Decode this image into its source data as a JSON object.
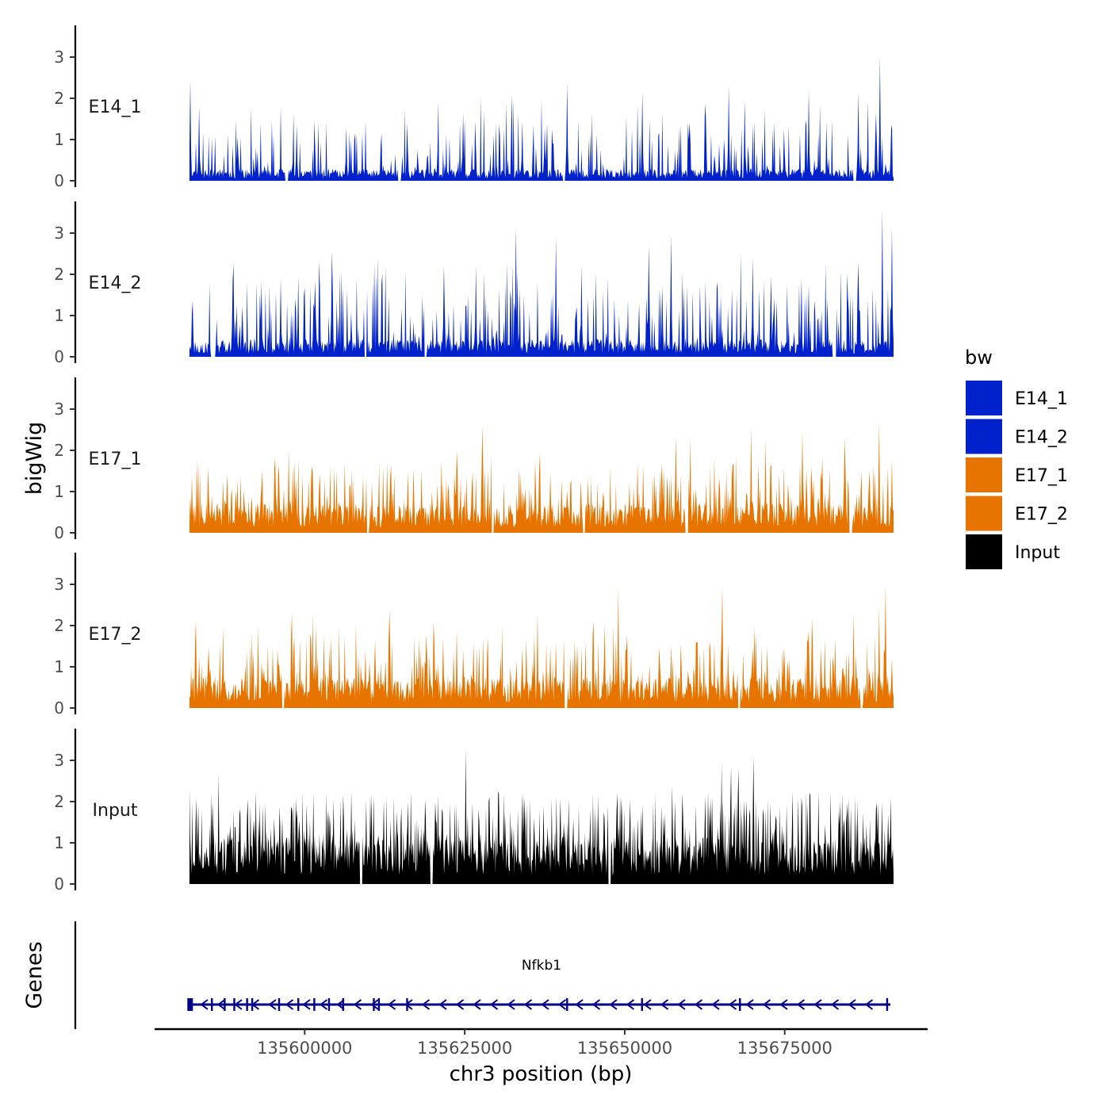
{
  "chart_data": {
    "type": "area",
    "title": "",
    "ylabel": "bigWig",
    "genes_label": "Genes",
    "xlabel": "chr3 position (bp)",
    "x_range": [
      135582000,
      135692000
    ],
    "x_ticks": [
      135600000,
      135625000,
      135650000,
      135675000
    ],
    "x_tick_labels": [
      "135600000",
      "135625000",
      "135650000",
      "135675000"
    ],
    "ylim": [
      0,
      3.8
    ],
    "y_ticks": [
      0,
      1,
      2,
      3
    ],
    "y_tick_labels": [
      "0",
      "1",
      "2",
      "3"
    ],
    "legend": {
      "title": "bw",
      "position": "right",
      "entries": [
        {
          "label": "E14_1",
          "color": "#0022CC"
        },
        {
          "label": "E14_2",
          "color": "#0022CC"
        },
        {
          "label": "E17_1",
          "color": "#E87400"
        },
        {
          "label": "E17_2",
          "color": "#E87400"
        },
        {
          "label": "Input",
          "color": "#000000"
        }
      ]
    },
    "series": [
      {
        "name": "E14_1",
        "color": "#0022CC",
        "bins": 220,
        "base": 0.22,
        "spike_prob": 0.2,
        "max": 3.0,
        "seed": 11,
        "peaks": [
          {
            "x": 135582100,
            "y": 2.45
          },
          {
            "x": 135583500,
            "y": 1.8
          },
          {
            "x": 135592600,
            "y": 0.72
          },
          {
            "x": 135598700,
            "y": 1.35
          },
          {
            "x": 135606500,
            "y": 1.3
          },
          {
            "x": 135616000,
            "y": 1.4
          },
          {
            "x": 135624800,
            "y": 1.65
          },
          {
            "x": 135629500,
            "y": 1.1
          },
          {
            "x": 135634000,
            "y": 1.45
          },
          {
            "x": 135641000,
            "y": 2.35
          },
          {
            "x": 135652800,
            "y": 2.15
          },
          {
            "x": 135666200,
            "y": 2.3
          },
          {
            "x": 135668800,
            "y": 1.95
          },
          {
            "x": 135678700,
            "y": 2.2
          },
          {
            "x": 135686500,
            "y": 2.15
          },
          {
            "x": 135689900,
            "y": 3.0
          },
          {
            "x": 135691600,
            "y": 1.25
          }
        ],
        "gaps": [
          {
            "from": 135597000,
            "to": 135597400
          },
          {
            "from": 135614600,
            "to": 135615000
          },
          {
            "from": 135640300,
            "to": 135640700
          },
          {
            "from": 135685700,
            "to": 135686200
          }
        ]
      },
      {
        "name": "E14_2",
        "color": "#0022CC",
        "bins": 220,
        "base": 0.32,
        "spike_prob": 0.24,
        "max": 3.6,
        "seed": 23,
        "peaks": [
          {
            "x": 135582500,
            "y": 1.35
          },
          {
            "x": 135588700,
            "y": 1.85
          },
          {
            "x": 135596200,
            "y": 1.9
          },
          {
            "x": 135604300,
            "y": 2.55
          },
          {
            "x": 135621800,
            "y": 2.2
          },
          {
            "x": 135626800,
            "y": 2.2
          },
          {
            "x": 135633000,
            "y": 3.15
          },
          {
            "x": 135639300,
            "y": 2.9
          },
          {
            "x": 135643200,
            "y": 2.2
          },
          {
            "x": 135653700,
            "y": 2.7
          },
          {
            "x": 135657300,
            "y": 2.95
          },
          {
            "x": 135670000,
            "y": 2.4
          },
          {
            "x": 135686500,
            "y": 2.3
          },
          {
            "x": 135690300,
            "y": 3.55
          },
          {
            "x": 135691700,
            "y": 3.15
          }
        ],
        "gaps": [
          {
            "from": 135585300,
            "to": 135586000
          },
          {
            "from": 135609300,
            "to": 135609700
          },
          {
            "from": 135618700,
            "to": 135619100
          },
          {
            "from": 135682500,
            "to": 135683000
          }
        ]
      },
      {
        "name": "E17_1",
        "color": "#E87400",
        "bins": 220,
        "base": 0.55,
        "spike_prob": 0.26,
        "max": 2.7,
        "seed": 37,
        "peaks": [
          {
            "x": 135597500,
            "y": 2.0
          },
          {
            "x": 135612900,
            "y": 1.7
          },
          {
            "x": 135623800,
            "y": 2.0
          },
          {
            "x": 135627700,
            "y": 2.6
          },
          {
            "x": 135636800,
            "y": 1.95
          },
          {
            "x": 135652000,
            "y": 1.7
          },
          {
            "x": 135658000,
            "y": 2.35
          },
          {
            "x": 135660300,
            "y": 2.3
          },
          {
            "x": 135669700,
            "y": 2.55
          },
          {
            "x": 135672000,
            "y": 2.25
          },
          {
            "x": 135677700,
            "y": 2.45
          },
          {
            "x": 135684400,
            "y": 2.3
          },
          {
            "x": 135689700,
            "y": 2.7
          },
          {
            "x": 135691700,
            "y": 1.8
          }
        ],
        "gaps": [
          {
            "from": 135609700,
            "to": 135610100
          },
          {
            "from": 135629200,
            "to": 135629600
          },
          {
            "from": 135643400,
            "to": 135643800
          },
          {
            "from": 135659500,
            "to": 135659900
          },
          {
            "from": 135685100,
            "to": 135685500
          }
        ]
      },
      {
        "name": "E17_2",
        "color": "#E87400",
        "bins": 220,
        "base": 0.55,
        "spike_prob": 0.26,
        "max": 3.0,
        "seed": 41,
        "peaks": [
          {
            "x": 135583000,
            "y": 2.1
          },
          {
            "x": 135587300,
            "y": 1.95
          },
          {
            "x": 135598000,
            "y": 2.3
          },
          {
            "x": 135601300,
            "y": 2.25
          },
          {
            "x": 135613300,
            "y": 2.35
          },
          {
            "x": 135623800,
            "y": 1.9
          },
          {
            "x": 135636400,
            "y": 2.3
          },
          {
            "x": 135645100,
            "y": 2.1
          },
          {
            "x": 135649000,
            "y": 2.9
          },
          {
            "x": 135665300,
            "y": 2.95
          },
          {
            "x": 135670200,
            "y": 2.0
          },
          {
            "x": 135679200,
            "y": 2.15
          },
          {
            "x": 135685800,
            "y": 2.3
          },
          {
            "x": 135689800,
            "y": 2.45
          },
          {
            "x": 135690800,
            "y": 3.0
          }
        ],
        "gaps": [
          {
            "from": 135596400,
            "to": 135596800
          },
          {
            "from": 135640600,
            "to": 135641000
          },
          {
            "from": 135667700,
            "to": 135668100
          },
          {
            "from": 135686800,
            "to": 135687200
          }
        ]
      },
      {
        "name": "Input",
        "color": "#000000",
        "bins": 260,
        "base": 0.85,
        "spike_prob": 0.3,
        "max": 3.3,
        "seed": 53,
        "peaks": [
          {
            "x": 135582000,
            "y": 2.3
          },
          {
            "x": 135586500,
            "y": 2.65
          },
          {
            "x": 135601400,
            "y": 2.2
          },
          {
            "x": 135607300,
            "y": 2.25
          },
          {
            "x": 135616600,
            "y": 2.25
          },
          {
            "x": 135620800,
            "y": 2.15
          },
          {
            "x": 135625200,
            "y": 3.3
          },
          {
            "x": 135630200,
            "y": 2.25
          },
          {
            "x": 135645900,
            "y": 2.15
          },
          {
            "x": 135657400,
            "y": 2.4
          },
          {
            "x": 135665100,
            "y": 2.95
          },
          {
            "x": 135666600,
            "y": 2.85
          },
          {
            "x": 135667800,
            "y": 2.8
          },
          {
            "x": 135670100,
            "y": 3.1
          },
          {
            "x": 135679000,
            "y": 2.15
          },
          {
            "x": 135685000,
            "y": 2.1
          },
          {
            "x": 135690200,
            "y": 2.0
          }
        ],
        "gaps": [
          {
            "from": 135608600,
            "to": 135609000
          },
          {
            "from": 135619600,
            "to": 135620000
          },
          {
            "from": 135647400,
            "to": 135647800
          }
        ]
      }
    ],
    "gene": {
      "name": "Nfkb1",
      "color": "#00008B",
      "strand": "-",
      "start": 135582000,
      "end": 135691500,
      "exons": [
        135582100,
        135585500,
        135587500,
        135589000,
        135591000,
        135591800,
        135596000,
        135599000,
        135601500,
        135603800,
        135606000,
        135610800,
        135611600,
        135616000,
        135641000,
        135652700,
        135668000,
        135691000
      ]
    }
  }
}
